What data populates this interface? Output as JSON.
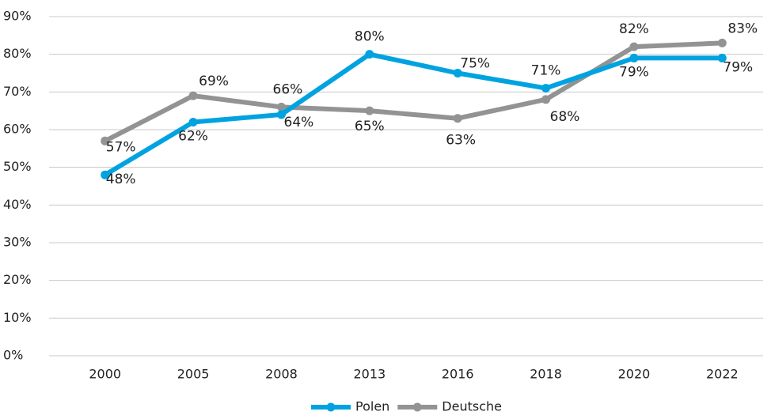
{
  "chart_data": {
    "type": "line",
    "categories": [
      "2000",
      "2005",
      "2008",
      "2013",
      "2016",
      "2018",
      "2020",
      "2022"
    ],
    "series": [
      {
        "name": "Polen",
        "color": "#00a3e0",
        "values": [
          48,
          62,
          64,
          80,
          75,
          71,
          79,
          79
        ],
        "value_labels": [
          "48%",
          "62%",
          "64%",
          "80%",
          "75%",
          "71%",
          "79%",
          "79%"
        ]
      },
      {
        "name": "Deutsche",
        "color": "#939393",
        "values": [
          57,
          69,
          66,
          65,
          63,
          68,
          82,
          83
        ],
        "value_labels": [
          "57%",
          "69%",
          "66%",
          "65%",
          "63%",
          "68%",
          "82%",
          "83%"
        ]
      }
    ],
    "ylim": [
      0,
      90
    ],
    "yticks": [
      {
        "value": 0,
        "label": "0%"
      },
      {
        "value": 10,
        "label": "10%"
      },
      {
        "value": 20,
        "label": "20%"
      },
      {
        "value": 30,
        "label": "30%"
      },
      {
        "value": 40,
        "label": "40%"
      },
      {
        "value": 50,
        "label": "50%"
      },
      {
        "value": 60,
        "label": "60%"
      },
      {
        "value": 70,
        "label": "70%"
      },
      {
        "value": 80,
        "label": "80%"
      },
      {
        "value": 90,
        "label": "90%"
      }
    ],
    "grid": true,
    "legend": "bottom"
  }
}
